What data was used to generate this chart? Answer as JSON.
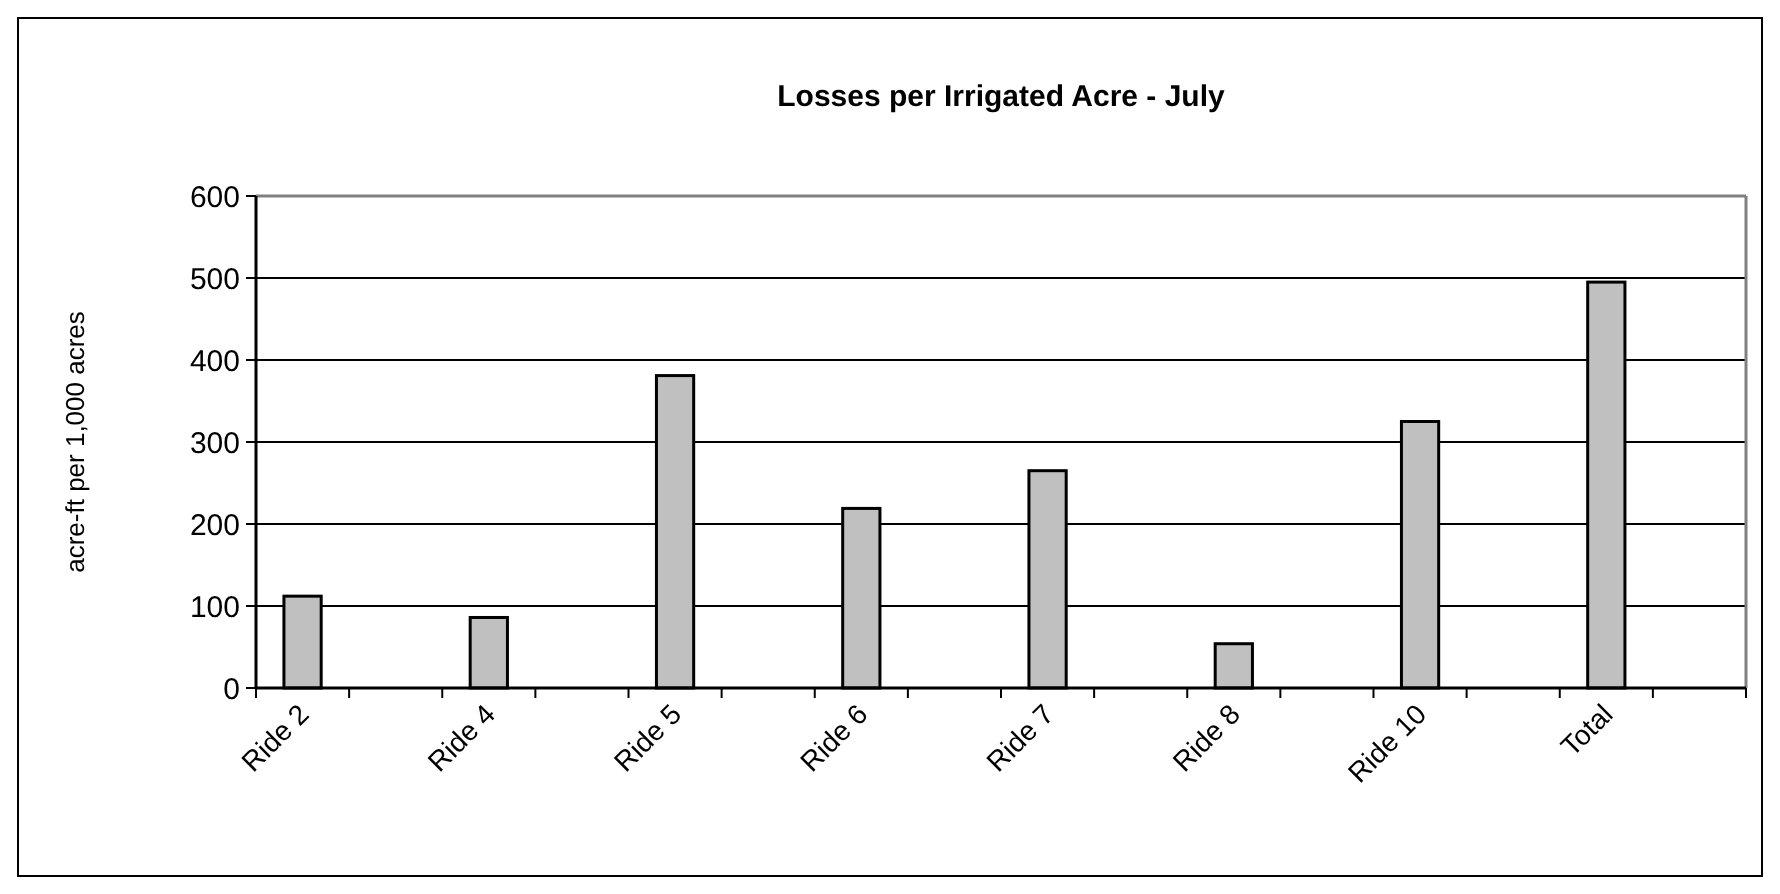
{
  "chart_data": {
    "type": "bar",
    "title": "Losses per Irrigated Acre - July",
    "ylabel": "acre-ft per 1,000 acres",
    "categories": [
      "Ride 2",
      null,
      "Ride 4",
      null,
      "Ride 5",
      null,
      "Ride 6",
      null,
      "Ride 7",
      null,
      "Ride 8",
      null,
      "Ride 10",
      null,
      "Total",
      null
    ],
    "values": [
      112,
      null,
      86,
      null,
      381,
      null,
      219,
      null,
      265,
      null,
      54,
      null,
      325,
      null,
      495,
      null
    ],
    "color": "#c0c0c0",
    "ylim": [
      0,
      600
    ],
    "yticks": [
      0,
      100,
      200,
      300,
      400,
      500,
      600
    ],
    "grid": "y"
  }
}
